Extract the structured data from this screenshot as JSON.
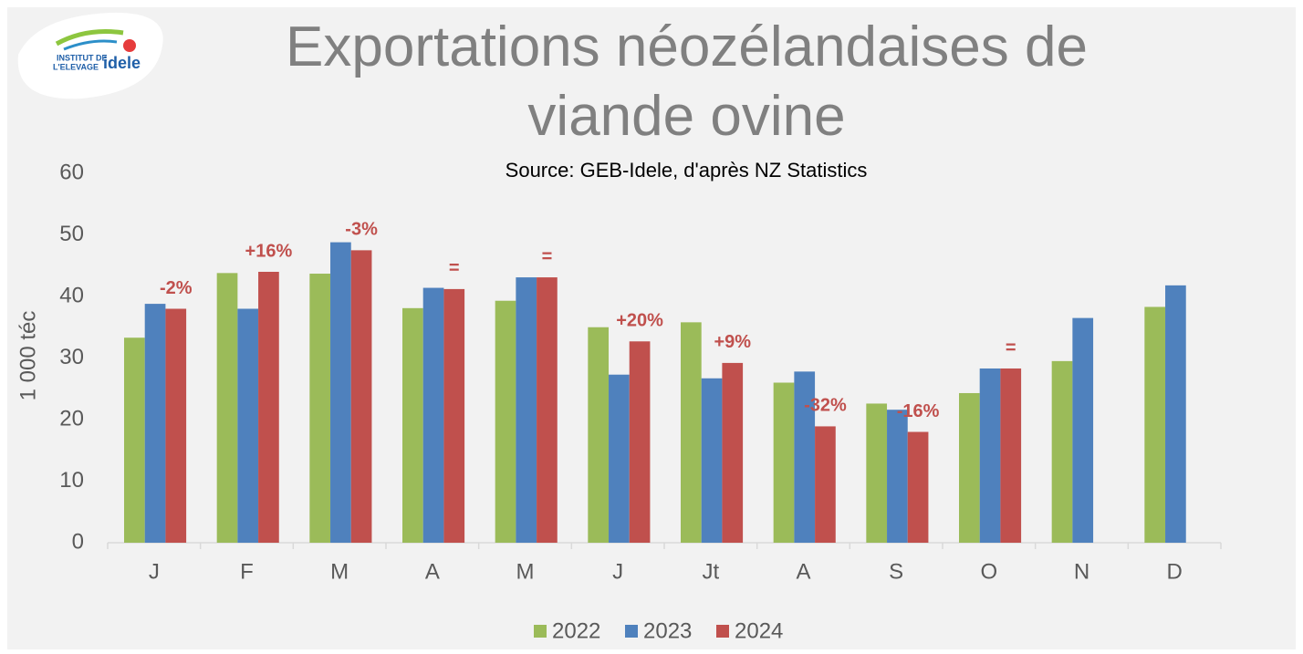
{
  "logo": {
    "line1": "INSTITUT DE",
    "line2": "L'ELEVAGE",
    "brand": "idele"
  },
  "chart_data": {
    "type": "bar",
    "title": "Exportations néozélandaises de viande ovine",
    "subtitle": "Source: GEB-Idele, d'après NZ Statistics",
    "y_label": "1 000 téc",
    "categories": [
      "J",
      "F",
      "M",
      "A",
      "M",
      "J",
      "Jt",
      "A",
      "S",
      "O",
      "N",
      "D"
    ],
    "series": [
      {
        "name": "2022",
        "color": "#9bbb59",
        "values": [
          33.3,
          43.8,
          43.7,
          38.1,
          39.3,
          35.0,
          35.8,
          26.0,
          22.6,
          24.3,
          29.5,
          38.3
        ]
      },
      {
        "name": "2023",
        "color": "#4f81bd",
        "values": [
          38.8,
          38.0,
          48.8,
          41.4,
          43.1,
          27.3,
          26.7,
          27.8,
          21.6,
          28.3,
          36.5,
          41.8
        ]
      },
      {
        "name": "2024",
        "color": "#c0504d",
        "values": [
          38.0,
          44.0,
          47.5,
          41.2,
          43.1,
          32.7,
          29.2,
          18.9,
          18.0,
          28.3,
          null,
          null
        ]
      }
    ],
    "annotations": [
      "-2%",
      "+16%",
      "-3%",
      "=",
      "=",
      "+20%",
      "+9%",
      "-32%",
      "-16%",
      "=",
      null,
      null
    ],
    "annotation_color": "#c0504d",
    "ylim": [
      0,
      60
    ],
    "yticks": [
      0,
      10,
      20,
      30,
      40,
      50,
      60
    ],
    "grid": false,
    "legend": "bottom"
  }
}
